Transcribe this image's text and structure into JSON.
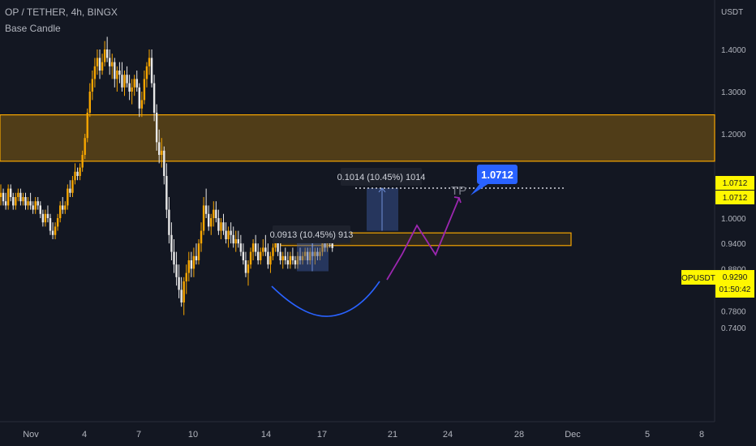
{
  "header": {
    "symbol_line": "OP / TETHER, 4h, BINGX",
    "indicator": "Base Candle"
  },
  "chart_data": {
    "type": "candlestick",
    "symbol": "OPUSDT",
    "price_axis_unit": "USDT",
    "y_ticks": [
      "1.4000",
      "1.3000",
      "1.2000",
      "1.0000",
      "0.9400",
      "0.8800",
      "0.8200",
      "0.7800",
      "0.7400"
    ],
    "x_ticks": [
      "Nov",
      "4",
      "7",
      "10",
      "14",
      "17",
      "21",
      "24",
      "28",
      "Dec",
      "5",
      "8"
    ],
    "grid": false,
    "current_price": "0.9290",
    "countdown": "01:50:42",
    "target_price": "1.0712",
    "resistance_zone": {
      "low": 1.135,
      "high": 1.245
    },
    "support_zone": {
      "low": 0.935,
      "high": 0.965
    },
    "measurements": [
      {
        "label": "0.0913 (10.45%) 913"
      },
      {
        "label": "0.1014 (10.45%) 1014"
      }
    ],
    "annotation_text": "TP",
    "colors": {
      "background": "#131722",
      "bull_candle": "#f7a600",
      "bear_candle": "#e8e8e8",
      "zone_border": "#f7a600",
      "zone_fill": "#f7a600",
      "measure_fill": "#3d5ea6",
      "projection": "#9c27b0",
      "arc": "#2962ff",
      "target_label": "#2962ff",
      "price_label": "#fff700"
    }
  }
}
